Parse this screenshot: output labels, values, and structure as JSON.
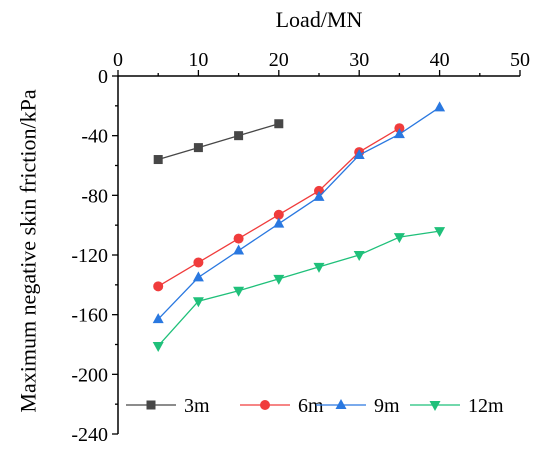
{
  "chart_data": {
    "type": "line",
    "xlabel": "Load/MN",
    "ylabel": "Maximum negative skin friction/kPa",
    "xlim": [
      0,
      50
    ],
    "ylim": [
      -240,
      0
    ],
    "x_ticks": [
      "0",
      "10",
      "20",
      "30",
      "40",
      "50"
    ],
    "y_ticks": [
      "0",
      "-40",
      "-80",
      "-120",
      "-160",
      "-200",
      "-240"
    ],
    "x_axis_position": "top",
    "grid": false,
    "legend_position": "bottom",
    "series": [
      {
        "name": "3m",
        "color": "#474747",
        "marker": "square",
        "x": [
          5,
          10,
          15,
          20
        ],
        "y": [
          -56,
          -48,
          -40,
          -32
        ]
      },
      {
        "name": "6m",
        "color": "#f03c3c",
        "marker": "circle",
        "x": [
          5,
          10,
          15,
          20,
          25,
          30,
          35
        ],
        "y": [
          -141,
          -125,
          -109,
          -93,
          -77,
          -51,
          -35
        ]
      },
      {
        "name": "9m",
        "color": "#2a78e0",
        "marker": "triangle-up",
        "x": [
          5,
          10,
          15,
          20,
          25,
          30,
          35,
          40
        ],
        "y": [
          -163,
          -135,
          -117,
          -99,
          -81,
          -53,
          -39,
          -21
        ]
      },
      {
        "name": "12m",
        "color": "#1fc07a",
        "marker": "triangle-down",
        "x": [
          5,
          10,
          15,
          20,
          25,
          30,
          35,
          40
        ],
        "y": [
          -181,
          -151,
          -144,
          -136,
          -128,
          -120,
          -108,
          -104
        ]
      }
    ]
  }
}
